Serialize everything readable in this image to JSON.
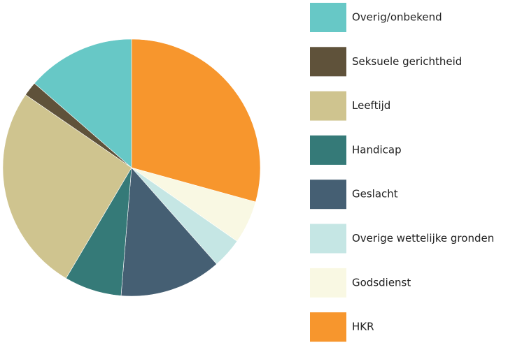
{
  "chart_data": {
    "type": "pie",
    "categories": [
      "Overig/onbekend",
      "Seksuele gerichtheid",
      "Leeftijd",
      "Handicap",
      "Geslacht",
      "Overige wettelijke gronden",
      "Godsdienst",
      "HKR"
    ],
    "values": [
      13.6,
      1.8,
      26.1,
      7.2,
      12.8,
      3.8,
      5.4,
      29.3
    ],
    "colors": [
      "#67c8c6",
      "#5f523a",
      "#cfc48f",
      "#357a78",
      "#455f73",
      "#c5e6e4",
      "#f9f8e3",
      "#f7962d"
    ],
    "legend": "right"
  }
}
